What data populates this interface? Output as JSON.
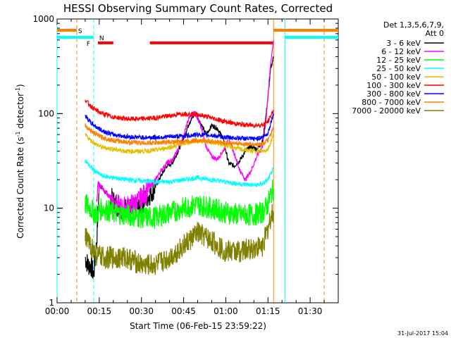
{
  "chart_data": {
    "type": "line",
    "title": "HESSI Observing Summary Count Rates, Corrected",
    "xlabel": "Start Time (06-Feb-15 23:59:22)",
    "ylabel_main": "Corrected Count Rate (s",
    "ylabel_sup1": "-1",
    "ylabel_mid": " detector",
    "ylabel_sup2": "-1",
    "ylabel_end": ")",
    "x_unit": "minutes after start",
    "xlim": [
      0,
      100
    ],
    "ylim": [
      1,
      1000
    ],
    "yscale": "log",
    "x_ticks": [
      {
        "v": 0,
        "label": "00:00"
      },
      {
        "v": 15,
        "label": "00:15"
      },
      {
        "v": 30,
        "label": "00:30"
      },
      {
        "v": 45,
        "label": "00:45"
      },
      {
        "v": 60,
        "label": "01:00"
      },
      {
        "v": 75,
        "label": "01:15"
      },
      {
        "v": 90,
        "label": "01:30"
      }
    ],
    "y_ticks": [
      {
        "v": 1,
        "label": "1"
      },
      {
        "v": 10,
        "label": "10"
      },
      {
        "v": 100,
        "label": "100"
      },
      {
        "v": 1000,
        "label": "1000"
      }
    ],
    "legend_header": [
      "Det 1,3,5,6,7,9,",
      "Att 0"
    ],
    "legend_position": "right",
    "footer_date": "31-Jul-2017 15:04",
    "flag_labels": {
      "saa": "S",
      "night": "N",
      "flare": "F"
    },
    "flag_bars": [
      {
        "flag": "saa",
        "color": "#ff7f00",
        "segments": [
          [
            0,
            7
          ],
          [
            77,
            100
          ]
        ],
        "level": 760
      },
      {
        "flag": "night",
        "color": "#00ffff",
        "segments": [
          [
            0,
            13
          ],
          [
            81,
            100
          ]
        ],
        "level": 640
      },
      {
        "flag": "flare",
        "color": "#ff0000",
        "segments": [
          [
            14.5,
            20
          ],
          [
            33,
            77
          ]
        ],
        "level": 560
      }
    ],
    "vertical_lines": [
      {
        "x": 0,
        "color": "#00ffff",
        "style": "solid"
      },
      {
        "x": 7,
        "color": "#ff7f00",
        "style": "dashed"
      },
      {
        "x": 13,
        "color": "#00ffff",
        "style": "dashed"
      },
      {
        "x": 77,
        "color": "#ff7f00",
        "style": "solid"
      },
      {
        "x": 81,
        "color": "#00ffff",
        "style": "solid"
      },
      {
        "x": 95,
        "color": "#ff7f00",
        "style": "dashed"
      }
    ],
    "series": [
      {
        "name": "3 - 6 keV",
        "color": "#000000",
        "x": [
          10,
          11,
          12,
          13,
          14,
          15,
          17,
          19,
          21,
          23,
          25,
          27,
          29,
          31,
          33,
          35,
          37,
          39,
          41,
          43,
          45,
          47,
          49,
          51,
          53,
          55,
          57,
          59,
          61,
          63,
          65,
          67,
          69,
          71,
          73,
          74,
          75,
          76,
          77
        ],
        "y": [
          3,
          2.5,
          2.5,
          2,
          4,
          18,
          15,
          13,
          11,
          9.5,
          10,
          10,
          10,
          12,
          14,
          17,
          22,
          28,
          30,
          40,
          55,
          80,
          100,
          80,
          60,
          75,
          70,
          55,
          30,
          28,
          32,
          40,
          45,
          42,
          50,
          80,
          150,
          300,
          400
        ]
      },
      {
        "name": "6 - 12 keV",
        "color": "#ff00ff",
        "x": [
          14,
          15,
          17,
          19,
          21,
          23,
          25,
          27,
          29,
          31,
          33,
          35,
          37,
          39,
          41,
          43,
          45,
          47,
          49,
          51,
          53,
          55,
          57,
          59,
          61,
          63,
          65,
          67,
          69,
          71,
          73,
          74,
          75,
          76,
          77
        ],
        "y": [
          14,
          18,
          15,
          13,
          11,
          10,
          10.5,
          11,
          12,
          14,
          17,
          20,
          25,
          30,
          32,
          42,
          60,
          90,
          105,
          75,
          45,
          35,
          33,
          40,
          55,
          38,
          25,
          20,
          25,
          35,
          45,
          70,
          150,
          350,
          600
        ]
      },
      {
        "name": "12 - 25 keV",
        "color": "#00ff00",
        "x": [
          10,
          12,
          14,
          16,
          20,
          25,
          30,
          35,
          40,
          45,
          50,
          55,
          60,
          65,
          70,
          73,
          75,
          76,
          77
        ],
        "y": [
          11,
          10,
          8.5,
          10,
          9,
          8.5,
          8,
          8,
          9,
          10,
          11,
          10,
          9,
          8.5,
          8.5,
          9,
          11,
          14,
          16
        ]
      },
      {
        "name": "25 - 50 keV",
        "color": "#00ffff",
        "x": [
          10,
          12,
          14,
          16,
          20,
          25,
          30,
          35,
          40,
          45,
          50,
          55,
          60,
          65,
          70,
          73,
          75,
          76,
          77
        ],
        "y": [
          32,
          27,
          24,
          22,
          21,
          20,
          19.5,
          19,
          19,
          20,
          21,
          20,
          19,
          18,
          17.5,
          18,
          20,
          23,
          26
        ]
      },
      {
        "name": "50 - 100 keV",
        "color": "#e0c000",
        "x": [
          10,
          12,
          14,
          16,
          20,
          25,
          30,
          35,
          40,
          45,
          50,
          55,
          60,
          65,
          70,
          73,
          75,
          76,
          77
        ],
        "y": [
          60,
          52,
          47,
          44,
          42,
          40,
          40,
          41,
          44,
          48,
          52,
          50,
          46,
          42,
          40,
          40,
          42,
          50,
          60
        ]
      },
      {
        "name": "100 - 300 keV",
        "color": "#ff0000",
        "x": [
          10,
          12,
          14,
          16,
          20,
          25,
          30,
          35,
          40,
          45,
          50,
          55,
          60,
          65,
          70,
          73,
          75,
          76,
          77
        ],
        "y": [
          140,
          120,
          108,
          100,
          92,
          88,
          88,
          90,
          95,
          100,
          98,
          90,
          82,
          77,
          75,
          76,
          82,
          95,
          110
        ]
      },
      {
        "name": "300 - 800 keV",
        "color": "#0000ff",
        "x": [
          10,
          12,
          14,
          16,
          20,
          25,
          30,
          35,
          40,
          45,
          50,
          55,
          60,
          65,
          70,
          73,
          75,
          76,
          77
        ],
        "y": [
          95,
          80,
          72,
          66,
          60,
          57,
          56,
          56,
          57,
          58,
          60,
          59,
          56,
          55,
          54,
          56,
          62,
          80,
          100
        ]
      },
      {
        "name": "800 - 7000 keV",
        "color": "#ff7f00",
        "x": [
          10,
          12,
          14,
          16,
          20,
          25,
          30,
          35,
          40,
          45,
          50,
          55,
          60,
          65,
          70,
          73,
          75,
          76,
          77
        ],
        "y": [
          75,
          66,
          60,
          56,
          52,
          50,
          49,
          49,
          50,
          51,
          52,
          51,
          49,
          48,
          47,
          48,
          52,
          60,
          70
        ]
      },
      {
        "name": "7000 - 20000 keV",
        "color": "#808000",
        "x": [
          10,
          12,
          14,
          16,
          20,
          25,
          30,
          35,
          40,
          45,
          50,
          55,
          60,
          65,
          70,
          73,
          75,
          76,
          77
        ],
        "y": [
          5,
          4,
          3.2,
          3,
          3,
          3,
          2.5,
          2.5,
          3,
          4,
          5.5,
          4.5,
          3.5,
          3.5,
          3.8,
          4,
          6,
          8,
          9
        ]
      }
    ]
  }
}
